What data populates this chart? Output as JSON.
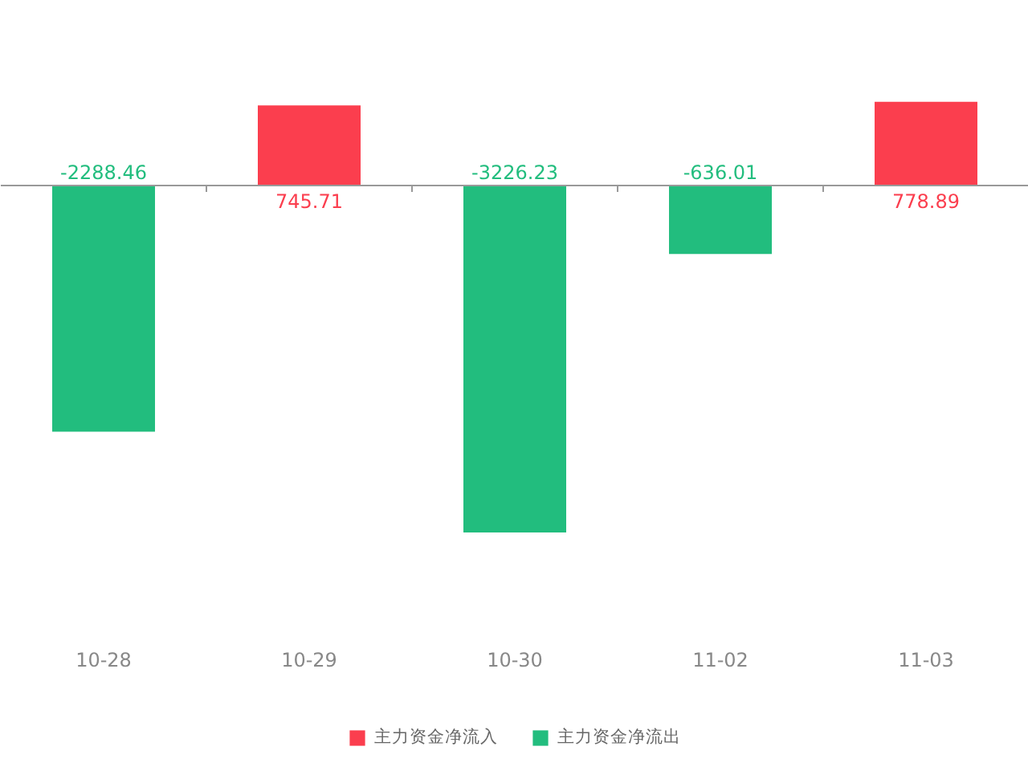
{
  "chart_data": {
    "type": "bar",
    "stacked": true,
    "data_labels": true,
    "legend": "bottom",
    "grid": false,
    "categories": [
      "10-28",
      "10-29",
      "10-30",
      "11-02",
      "11-03"
    ],
    "series": [
      {
        "name": "主力资金净流入",
        "color": "#fb3e4e",
        "values": [
          null,
          745.71,
          null,
          null,
          778.89
        ]
      },
      {
        "name": "主力资金净流出",
        "color": "#22bd7e",
        "values": [
          -2288.46,
          null,
          -3226.23,
          -636.01,
          null
        ]
      }
    ]
  }
}
